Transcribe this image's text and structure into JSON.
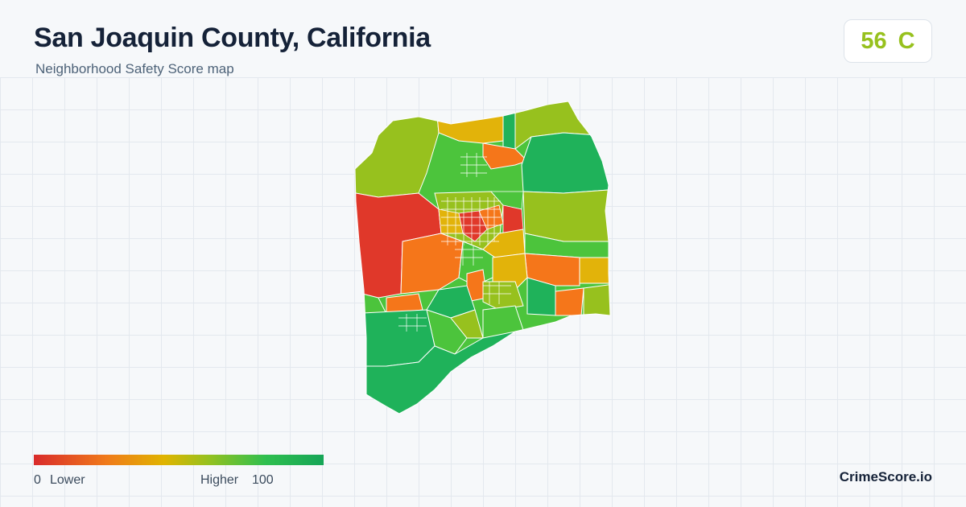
{
  "header": {
    "title": "San Joaquin County, California",
    "subtitle": "Neighborhood Safety Score map"
  },
  "score": {
    "value": "56",
    "grade": "C",
    "color": "#97c11e"
  },
  "legend": {
    "min_label": "0",
    "low_label": "Lower",
    "high_label": "Higher",
    "max_label": "100",
    "gradient": [
      "#d92b2b",
      "#f07a1a",
      "#e0b400",
      "#97c11e",
      "#2fbf4f",
      "#16a557"
    ]
  },
  "brand": "CrimeScore.io",
  "map": {
    "region": "San Joaquin County",
    "tract_colors": [
      "#e0382a",
      "#f5761a",
      "#e2b30a",
      "#97c11e",
      "#4cc43c",
      "#1fb25a"
    ]
  }
}
